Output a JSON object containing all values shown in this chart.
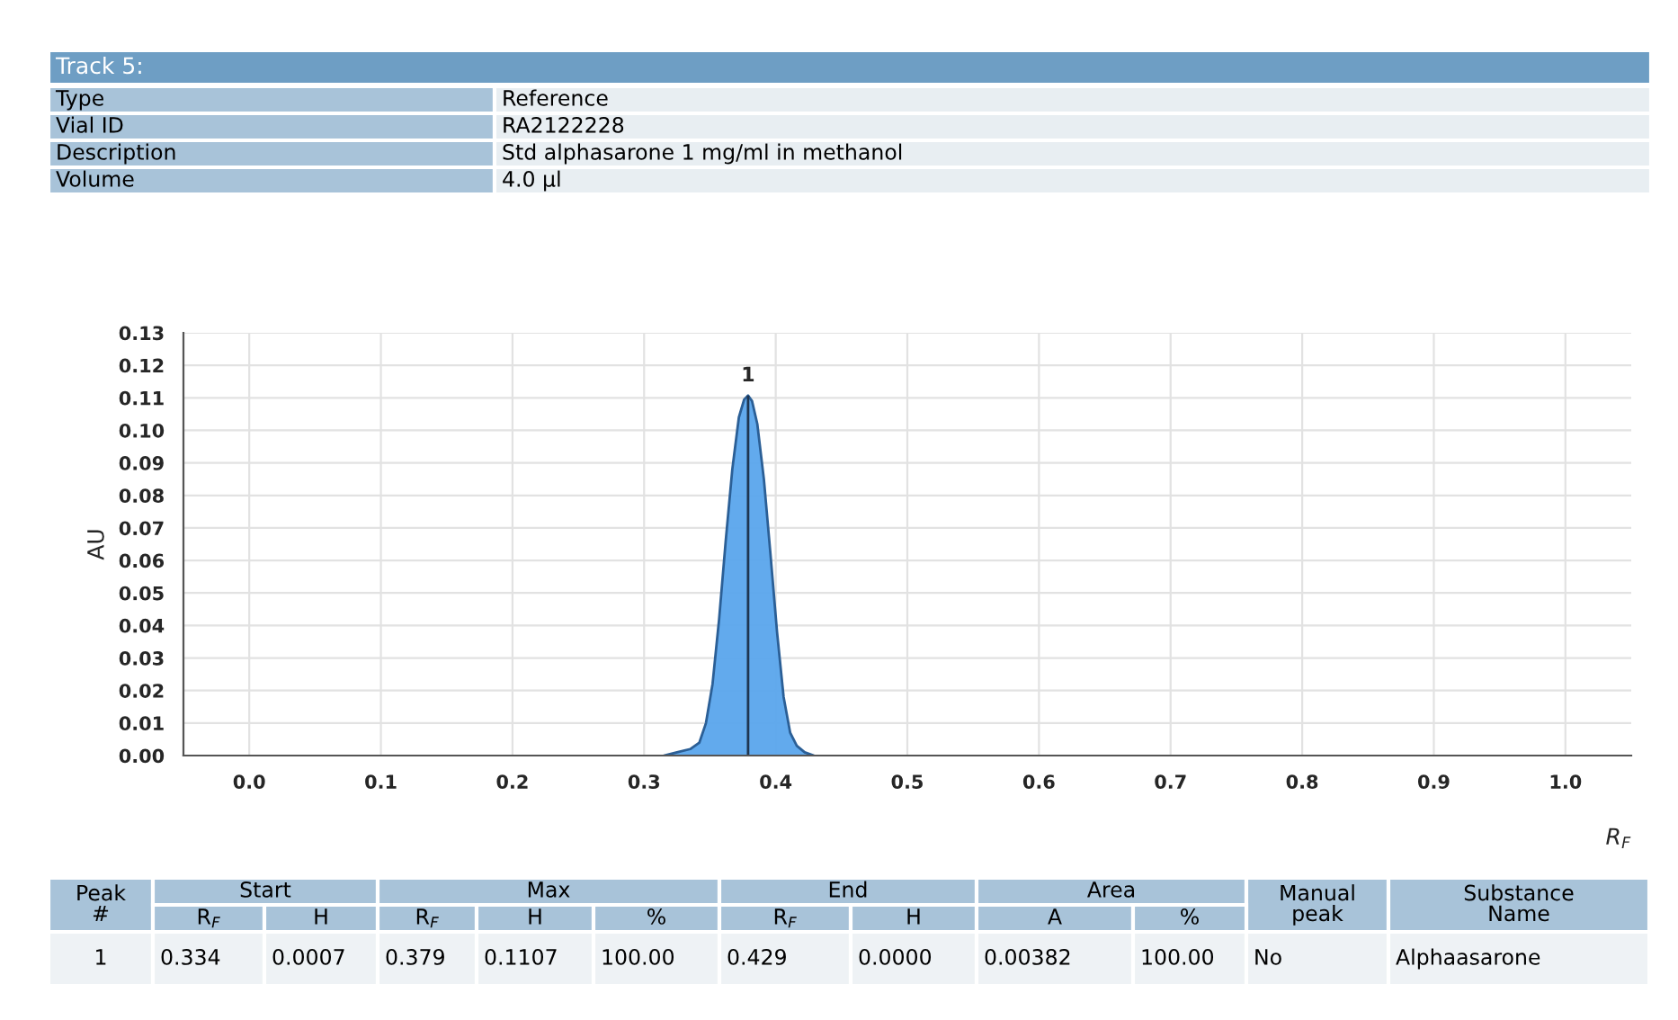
{
  "chart_data": {
    "type": "area",
    "title": "Track 5:",
    "xlabel": "R$_{F}$",
    "ylabel": "AU",
    "x": [
      0.315,
      0.325,
      0.335,
      0.342,
      0.347,
      0.352,
      0.357,
      0.362,
      0.367,
      0.372,
      0.376,
      0.379,
      0.382,
      0.386,
      0.391,
      0.396,
      0.401,
      0.406,
      0.411,
      0.416,
      0.422,
      0.429
    ],
    "series": [
      {
        "color": "#5aa5ec",
        "values": [
          0.0,
          0.001,
          0.002,
          0.004,
          0.01,
          0.022,
          0.042,
          0.066,
          0.088,
          0.104,
          0.1095,
          0.1107,
          0.109,
          0.102,
          0.085,
          0.062,
          0.038,
          0.018,
          0.007,
          0.003,
          0.001,
          0.0
        ]
      }
    ],
    "xlim": [
      -0.05,
      1.05
    ],
    "ylim": [
      0,
      0.13
    ],
    "xticks": [
      {
        "value": 0,
        "label": "0.0"
      },
      0.1,
      0.2,
      0.3,
      0.4,
      0.5,
      0.6,
      0.7,
      0.8,
      0.9,
      {
        "value": 1,
        "label": "1.0"
      }
    ],
    "yticks": [
      {
        "value": 0,
        "label": "0.00"
      },
      {
        "value": 0.01,
        "label": "0.01"
      },
      {
        "value": 0.02,
        "label": "0.02"
      },
      {
        "value": 0.03,
        "label": "0.03"
      },
      {
        "value": 0.04,
        "label": "0.04"
      },
      {
        "value": 0.05,
        "label": "0.05"
      },
      {
        "value": 0.06,
        "label": "0.06"
      },
      {
        "value": 0.07,
        "label": "0.07"
      },
      {
        "value": 0.08,
        "label": "0.08"
      },
      {
        "value": 0.09,
        "label": "0.09"
      },
      {
        "value": 0.1,
        "label": "0.10"
      },
      {
        "value": 0.11,
        "label": "0.11"
      },
      {
        "value": 0.12,
        "label": "0.12"
      },
      {
        "value": 0.13,
        "label": "0.13"
      }
    ],
    "grid": true,
    "ref_lines": [
      {
        "axis": "x",
        "value": 0.379,
        "color": "#1f3550"
      }
    ],
    "annotations": [
      {
        "text": "1",
        "x": 0.379,
        "y": 0.1107
      },
      "Type",
      "Reference",
      "Vial ID",
      "RA2122228",
      "Description",
      "Std alphasarone 1 mg/ml in methanol",
      "Volume",
      "4.0 µl",
      "Peak\n#",
      "Start",
      "Max",
      "End",
      "Area",
      "Manual\npeak",
      "Substance\nName",
      "R$_{F}$",
      "H",
      "R$_{F}$",
      "H",
      "%",
      "R$_{F}$",
      "H",
      "A",
      "%",
      "1",
      "0.334",
      "0.0007",
      "0.379",
      "0.1107",
      "100.00",
      "0.429",
      "0.0000",
      "0.00382",
      "100.00",
      "No",
      "Alphaasarone"
    ]
  }
}
